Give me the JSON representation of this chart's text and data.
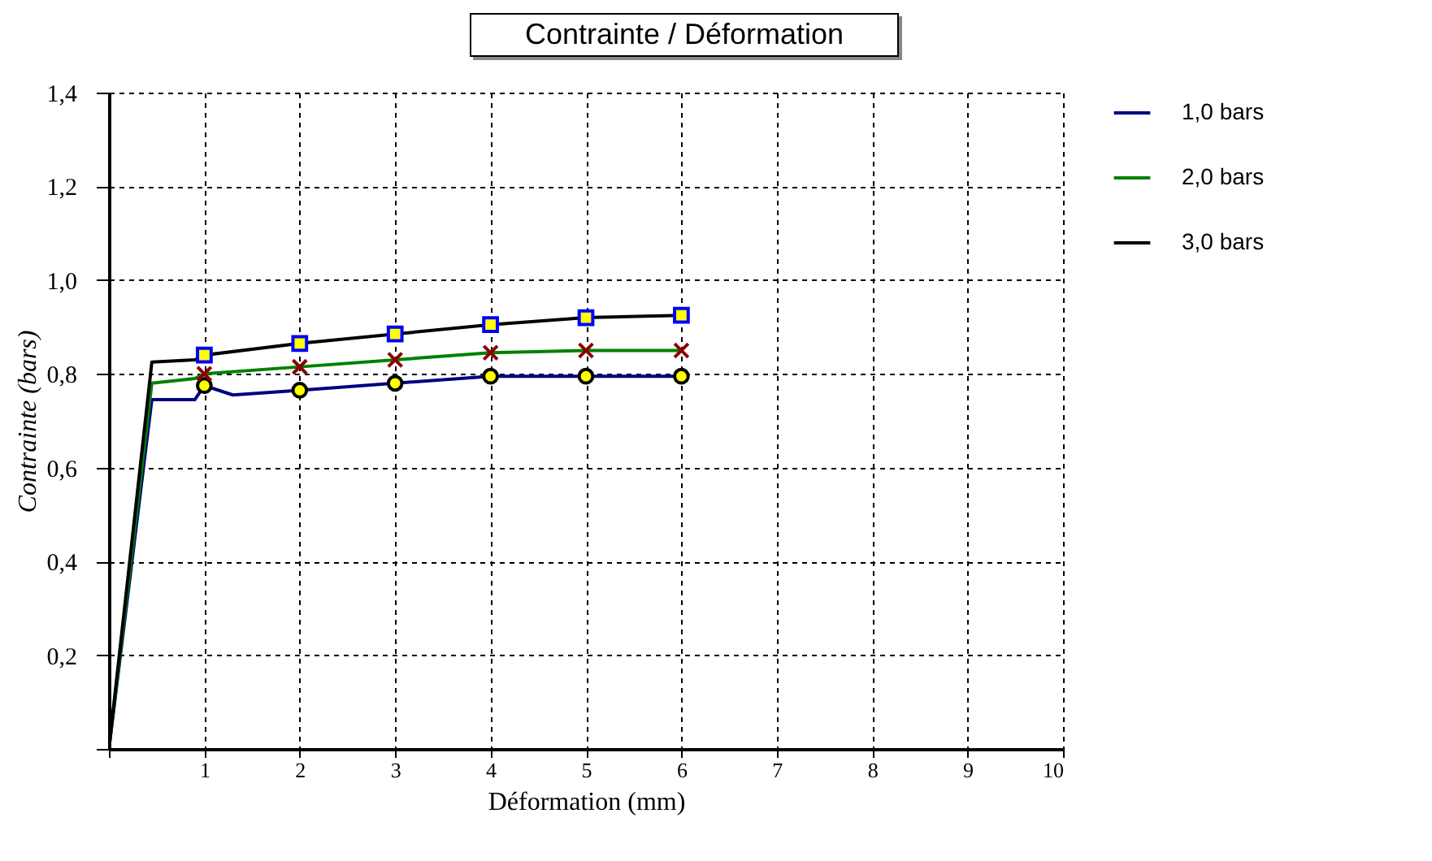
{
  "chart_data": {
    "type": "line",
    "title": "Contrainte / Déformation",
    "xlabel": "Déformation (mm)",
    "ylabel": "Contrainte (bars)",
    "xlim": [
      0,
      10
    ],
    "xticks": [
      {
        "value": 0,
        "label": null
      },
      1,
      2,
      3,
      4,
      5,
      6,
      7,
      8,
      9,
      10
    ],
    "ylim": [
      0,
      1.4
    ],
    "yticks": [
      {
        "value": 0,
        "label": null
      },
      {
        "value": 0.2,
        "label": "0,2"
      },
      {
        "value": 0.4,
        "label": "0,4"
      },
      {
        "value": 0.6,
        "label": "0,6"
      },
      {
        "value": 0.8,
        "label": "0,8"
      },
      {
        "value": 1.0,
        "label": "1,0"
      },
      {
        "value": 1.2,
        "label": "1,2"
      },
      {
        "value": 1.4,
        "label": "1,4"
      }
    ],
    "grid": true,
    "legend": "right",
    "line_style": "solid",
    "series": [
      {
        "name": "1,0 bars",
        "color": "#000080",
        "marker": "circle",
        "x": [
          0,
          0.45,
          0.9,
          1,
          1.3,
          2,
          3,
          4,
          5,
          6
        ],
        "values": [
          0,
          0.745,
          0.745,
          0.775,
          0.755,
          0.765,
          0.78,
          0.795,
          0.795,
          0.795
        ]
      },
      {
        "name": "2,0 bars",
        "color": "#008000",
        "marker": "cross",
        "x": [
          0,
          0.45,
          0.9,
          1,
          2,
          3,
          4,
          5,
          6
        ],
        "values": [
          0,
          0.78,
          0.79,
          0.8,
          0.815,
          0.83,
          0.845,
          0.85,
          0.85
        ]
      },
      {
        "name": "3,0 bars",
        "color": "#000000",
        "marker": "square",
        "x": [
          0,
          0.45,
          0.9,
          1,
          2,
          3,
          4,
          5,
          6
        ],
        "values": [
          0,
          0.825,
          0.83,
          0.84,
          0.865,
          0.885,
          0.905,
          0.92,
          0.925
        ]
      }
    ]
  }
}
